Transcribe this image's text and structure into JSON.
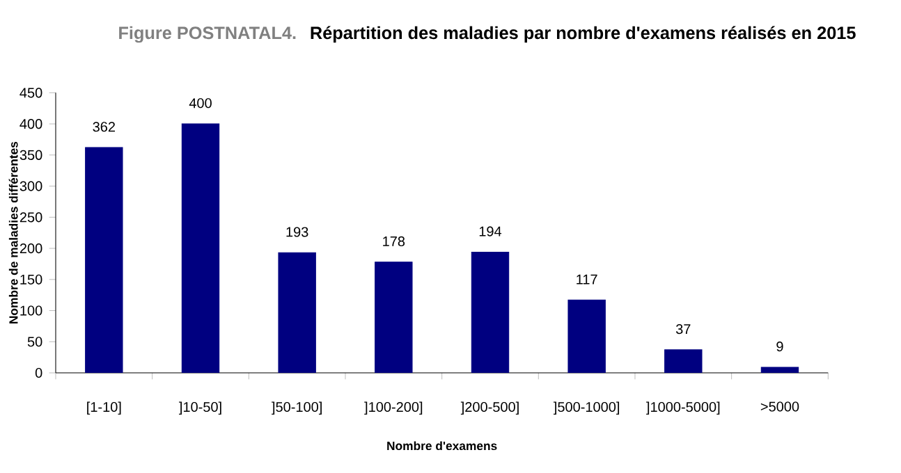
{
  "chart_data": {
    "type": "bar",
    "title": "Répartition des maladies par nombre d'examens réalisés en 2015",
    "annotations": [
      "Figure POSTNATAL4."
    ],
    "xlabel": "Nombre d'examens",
    "ylabel": "Nombre de maladies différentes",
    "categories": [
      "[1-10]",
      "]10-50]",
      "]50-100]",
      "]100-200]",
      "]200-500]",
      "]500-1000]",
      "]1000-5000]",
      ">5000"
    ],
    "values": [
      362,
      400,
      193,
      178,
      194,
      117,
      37,
      9
    ],
    "color": "#000080",
    "ylim": [
      0,
      450
    ],
    "yticks": [
      0,
      50,
      100,
      150,
      200,
      250,
      300,
      350,
      400,
      450
    ],
    "data_labels": true,
    "grid": false
  }
}
